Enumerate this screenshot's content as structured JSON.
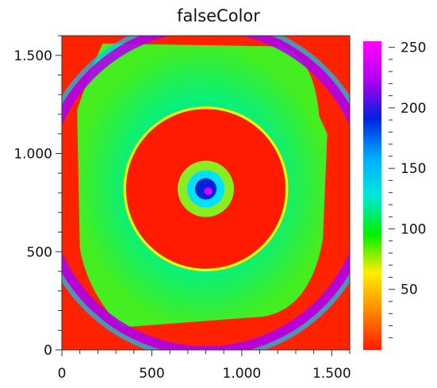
{
  "chart_data": {
    "type": "heatmap",
    "title": "falseColor",
    "xlabel": "",
    "ylabel": "",
    "xlim": [
      0,
      1600
    ],
    "ylim": [
      0,
      1600
    ],
    "x_ticks": [
      {
        "value": 0,
        "label": "0"
      },
      {
        "value": 500,
        "label": "500"
      },
      {
        "value": 1000,
        "label": "1.000"
      },
      {
        "value": 1500,
        "label": "1.500"
      }
    ],
    "y_ticks": [
      {
        "value": 0,
        "label": "0"
      },
      {
        "value": 500,
        "label": "500"
      },
      {
        "value": 1000,
        "label": "1.000"
      },
      {
        "value": 1500,
        "label": "1.500"
      }
    ],
    "colorbar": {
      "range": [
        0,
        255
      ],
      "ticks": [
        {
          "value": 50,
          "label": "50"
        },
        {
          "value": 100,
          "label": "100"
        },
        {
          "value": 150,
          "label": "150"
        },
        {
          "value": 200,
          "label": "200"
        },
        {
          "value": 250,
          "label": "250"
        }
      ],
      "colors": [
        "#ff1a00",
        "#ff8800",
        "#ffee00",
        "#00ee00",
        "#00e8d8",
        "#00aaff",
        "#0022dd",
        "#b000ee",
        "#ff00ff"
      ]
    },
    "background_color": "#ff2200",
    "features": {
      "plate_outline_value": 110,
      "outer_ring": {
        "center": [
          800,
          820
        ],
        "radius": 900,
        "value": 225
      },
      "inner_region": {
        "center": [
          800,
          820
        ],
        "radius": 760,
        "value": 5
      },
      "center_spot": {
        "center": [
          800,
          820
        ],
        "radius": 130,
        "value": 180
      }
    }
  }
}
